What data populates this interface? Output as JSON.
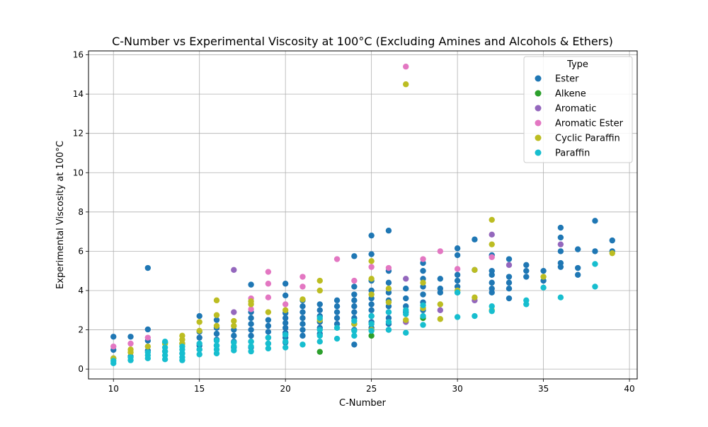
{
  "chart_data": {
    "type": "scatter",
    "title": "C-Number vs Experimental Viscosity at 100°C (Excluding Amines and Alcohols & Ethers)",
    "xlabel": "C-Number",
    "ylabel": "Experimental Viscosity at 100°C",
    "xlim": [
      8.55,
      40.45
    ],
    "ylim": [
      -0.5,
      16.2
    ],
    "xticks": [
      10,
      15,
      20,
      25,
      30,
      35,
      40
    ],
    "yticks": [
      0,
      2,
      4,
      6,
      8,
      10,
      12,
      14,
      16
    ],
    "grid": true,
    "legend": {
      "title": "Type",
      "position": "top-right"
    },
    "series": [
      {
        "name": "Ester",
        "color": "#1f77b4",
        "points": [
          [
            10,
            1.65
          ],
          [
            10,
            0.98
          ],
          [
            10,
            0.55
          ],
          [
            11,
            1.65
          ],
          [
            11,
            0.65
          ],
          [
            12,
            5.15
          ],
          [
            12,
            2.02
          ],
          [
            12,
            1.45
          ],
          [
            12,
            0.95
          ],
          [
            13,
            1.35
          ],
          [
            13,
            0.9
          ],
          [
            14,
            1.3
          ],
          [
            14,
            0.8
          ],
          [
            15,
            2.7
          ],
          [
            15,
            1.9
          ],
          [
            15,
            1.6
          ],
          [
            15,
            1.2
          ],
          [
            15,
            1.0
          ],
          [
            16,
            2.5
          ],
          [
            16,
            2.1
          ],
          [
            16,
            1.8
          ],
          [
            16,
            1.5
          ],
          [
            16,
            1.2
          ],
          [
            17,
            2.0
          ],
          [
            17,
            1.7
          ],
          [
            17,
            1.4
          ],
          [
            17,
            1.1
          ],
          [
            18,
            4.3
          ],
          [
            18,
            2.9
          ],
          [
            18,
            2.6
          ],
          [
            18,
            2.3
          ],
          [
            18,
            2.0
          ],
          [
            18,
            1.7
          ],
          [
            18,
            1.4
          ],
          [
            18,
            1.1
          ],
          [
            19,
            2.5
          ],
          [
            19,
            2.2
          ],
          [
            19,
            1.9
          ],
          [
            19,
            1.6
          ],
          [
            19,
            1.3
          ],
          [
            20,
            4.35
          ],
          [
            20,
            3.75
          ],
          [
            20,
            2.85
          ],
          [
            20,
            2.6
          ],
          [
            20,
            2.35
          ],
          [
            20,
            2.1
          ],
          [
            20,
            1.85
          ],
          [
            20,
            1.6
          ],
          [
            20,
            1.35
          ],
          [
            21,
            3.5
          ],
          [
            21,
            3.2
          ],
          [
            21,
            2.9
          ],
          [
            21,
            2.6
          ],
          [
            21,
            2.3
          ],
          [
            21,
            2.0
          ],
          [
            21,
            1.7
          ],
          [
            22,
            3.3
          ],
          [
            22,
            3.0
          ],
          [
            22,
            2.7
          ],
          [
            22,
            2.4
          ],
          [
            22,
            2.1
          ],
          [
            22,
            1.8
          ],
          [
            23,
            3.5
          ],
          [
            23,
            3.2
          ],
          [
            23,
            2.9
          ],
          [
            23,
            2.6
          ],
          [
            23,
            2.3
          ],
          [
            24,
            5.75
          ],
          [
            24,
            4.2
          ],
          [
            24,
            3.8
          ],
          [
            24,
            3.5
          ],
          [
            24,
            3.2
          ],
          [
            24,
            2.9
          ],
          [
            24,
            2.6
          ],
          [
            24,
            2.3
          ],
          [
            24,
            2.0
          ],
          [
            24,
            1.25
          ],
          [
            25,
            6.8
          ],
          [
            25,
            5.85
          ],
          [
            25,
            4.5
          ],
          [
            25,
            4.0
          ],
          [
            25,
            3.6
          ],
          [
            25,
            3.3
          ],
          [
            25,
            3.0
          ],
          [
            25,
            2.7
          ],
          [
            25,
            2.4
          ],
          [
            25,
            2.1
          ],
          [
            26,
            7.05
          ],
          [
            26,
            5.0
          ],
          [
            26,
            4.4
          ],
          [
            26,
            3.9
          ],
          [
            26,
            3.5
          ],
          [
            26,
            3.2
          ],
          [
            26,
            2.9
          ],
          [
            26,
            2.6
          ],
          [
            26,
            2.3
          ],
          [
            26,
            2.0
          ],
          [
            27,
            4.1
          ],
          [
            27,
            3.6
          ],
          [
            27,
            3.2
          ],
          [
            27,
            2.9
          ],
          [
            28,
            5.4
          ],
          [
            28,
            5.0
          ],
          [
            28,
            4.6
          ],
          [
            28,
            4.2
          ],
          [
            28,
            3.8
          ],
          [
            28,
            3.4
          ],
          [
            28,
            3.0
          ],
          [
            29,
            4.6
          ],
          [
            29,
            4.1
          ],
          [
            29,
            3.9
          ],
          [
            30,
            6.15
          ],
          [
            30,
            5.8
          ],
          [
            30,
            4.8
          ],
          [
            30,
            4.5
          ],
          [
            30,
            4.2
          ],
          [
            30,
            3.9
          ],
          [
            31,
            6.6
          ],
          [
            31,
            5.05
          ],
          [
            32,
            5.8
          ],
          [
            32,
            5.0
          ],
          [
            32,
            4.8
          ],
          [
            32,
            4.4
          ],
          [
            32,
            4.1
          ],
          [
            32,
            3.9
          ],
          [
            33,
            5.6
          ],
          [
            33,
            4.7
          ],
          [
            33,
            4.4
          ],
          [
            33,
            4.1
          ],
          [
            33,
            3.6
          ],
          [
            34,
            5.3
          ],
          [
            34,
            5.0
          ],
          [
            34,
            4.7
          ],
          [
            35,
            5.0
          ],
          [
            35,
            4.5
          ],
          [
            36,
            7.2
          ],
          [
            36,
            6.7
          ],
          [
            36,
            6.0
          ],
          [
            36,
            5.4
          ],
          [
            36,
            5.2
          ],
          [
            37,
            6.1
          ],
          [
            37,
            5.15
          ],
          [
            37,
            4.8
          ],
          [
            38,
            7.55
          ],
          [
            38,
            6.0
          ],
          [
            39,
            6.55
          ],
          [
            39,
            6.0
          ]
        ]
      },
      {
        "name": "Alkene",
        "color": "#2ca02c",
        "points": [
          [
            22,
            0.88
          ],
          [
            25,
            1.7
          ],
          [
            28,
            2.6
          ]
        ]
      },
      {
        "name": "Aromatic",
        "color": "#9467bd",
        "points": [
          [
            17,
            5.05
          ],
          [
            17,
            2.9
          ],
          [
            27,
            4.6
          ],
          [
            27,
            2.4
          ],
          [
            29,
            3.0
          ],
          [
            31,
            3.5
          ],
          [
            32,
            6.85
          ],
          [
            33,
            5.3
          ],
          [
            36,
            6.35
          ]
        ]
      },
      {
        "name": "Aromatic Ester",
        "color": "#e377c2",
        "points": [
          [
            10,
            1.15
          ],
          [
            11,
            1.3
          ],
          [
            12,
            1.6
          ],
          [
            18,
            3.6
          ],
          [
            18,
            3.05
          ],
          [
            19,
            4.95
          ],
          [
            19,
            4.35
          ],
          [
            19,
            3.65
          ],
          [
            20,
            3.3
          ],
          [
            21,
            4.7
          ],
          [
            21,
            4.2
          ],
          [
            23,
            5.6
          ],
          [
            24,
            4.5
          ],
          [
            25,
            5.2
          ],
          [
            26,
            5.15
          ],
          [
            27,
            15.4
          ],
          [
            28,
            5.6
          ],
          [
            29,
            6.0
          ],
          [
            30,
            5.1
          ],
          [
            32,
            5.7
          ]
        ]
      },
      {
        "name": "Cyclic Paraffin",
        "color": "#bcbd22",
        "points": [
          [
            10,
            0.55
          ],
          [
            11,
            1.0
          ],
          [
            11,
            0.85
          ],
          [
            12,
            1.15
          ],
          [
            13,
            1.3
          ],
          [
            14,
            1.7
          ],
          [
            14,
            1.5
          ],
          [
            14,
            1.3
          ],
          [
            15,
            2.4
          ],
          [
            15,
            1.95
          ],
          [
            16,
            3.5
          ],
          [
            16,
            2.75
          ],
          [
            16,
            2.2
          ],
          [
            17,
            2.45
          ],
          [
            17,
            2.2
          ],
          [
            18,
            3.45
          ],
          [
            18,
            3.3
          ],
          [
            19,
            2.9
          ],
          [
            20,
            3.0
          ],
          [
            21,
            3.55
          ],
          [
            22,
            4.5
          ],
          [
            22,
            4.0
          ],
          [
            22,
            2.5
          ],
          [
            24,
            2.3
          ],
          [
            25,
            5.5
          ],
          [
            25,
            4.6
          ],
          [
            25,
            3.8
          ],
          [
            25,
            2.0
          ],
          [
            26,
            4.1
          ],
          [
            26,
            3.4
          ],
          [
            27,
            14.5
          ],
          [
            27,
            2.5
          ],
          [
            28,
            4.4
          ],
          [
            28,
            3.1
          ],
          [
            29,
            2.55
          ],
          [
            29,
            3.3
          ],
          [
            30,
            4.0
          ],
          [
            31,
            5.05
          ],
          [
            31,
            3.65
          ],
          [
            32,
            7.6
          ],
          [
            32,
            6.35
          ],
          [
            32,
            3.0
          ],
          [
            35,
            4.7
          ],
          [
            39,
            5.9
          ]
        ]
      },
      {
        "name": "Paraffin",
        "color": "#17becf",
        "points": [
          [
            10,
            0.3
          ],
          [
            10,
            0.42
          ],
          [
            11,
            0.45
          ],
          [
            11,
            0.6
          ],
          [
            12,
            0.55
          ],
          [
            12,
            0.7
          ],
          [
            12,
            0.85
          ],
          [
            13,
            0.5
          ],
          [
            13,
            0.7
          ],
          [
            13,
            0.9
          ],
          [
            13,
            1.1
          ],
          [
            13,
            1.4
          ],
          [
            14,
            0.45
          ],
          [
            14,
            0.6
          ],
          [
            14,
            0.8
          ],
          [
            14,
            1.0
          ],
          [
            14,
            1.15
          ],
          [
            15,
            0.75
          ],
          [
            15,
            1.0
          ],
          [
            15,
            1.3
          ],
          [
            16,
            0.8
          ],
          [
            16,
            1.0
          ],
          [
            16,
            1.2
          ],
          [
            16,
            1.45
          ],
          [
            17,
            0.95
          ],
          [
            17,
            1.15
          ],
          [
            17,
            1.35
          ],
          [
            18,
            0.9
          ],
          [
            18,
            1.15
          ],
          [
            18,
            1.4
          ],
          [
            19,
            1.05
          ],
          [
            19,
            1.3
          ],
          [
            19,
            1.6
          ],
          [
            20,
            1.1
          ],
          [
            20,
            1.4
          ],
          [
            20,
            1.75
          ],
          [
            21,
            1.25
          ],
          [
            22,
            1.4
          ],
          [
            22,
            1.7
          ],
          [
            22,
            2.0
          ],
          [
            22,
            2.6
          ],
          [
            23,
            1.55
          ],
          [
            23,
            2.1
          ],
          [
            24,
            1.7
          ],
          [
            24,
            1.95
          ],
          [
            24,
            2.45
          ],
          [
            25,
            1.95
          ],
          [
            25,
            2.3
          ],
          [
            25,
            2.7
          ],
          [
            26,
            2.0
          ],
          [
            26,
            2.4
          ],
          [
            26,
            2.9
          ],
          [
            27,
            1.85
          ],
          [
            27,
            2.8
          ],
          [
            27,
            3.0
          ],
          [
            28,
            2.25
          ],
          [
            28,
            2.7
          ],
          [
            28,
            3.25
          ],
          [
            30,
            2.65
          ],
          [
            30,
            3.9
          ],
          [
            31,
            2.7
          ],
          [
            32,
            2.95
          ],
          [
            32,
            3.2
          ],
          [
            34,
            3.3
          ],
          [
            34,
            3.5
          ],
          [
            35,
            4.15
          ],
          [
            36,
            3.65
          ],
          [
            38,
            5.35
          ],
          [
            38,
            4.2
          ]
        ]
      }
    ]
  }
}
